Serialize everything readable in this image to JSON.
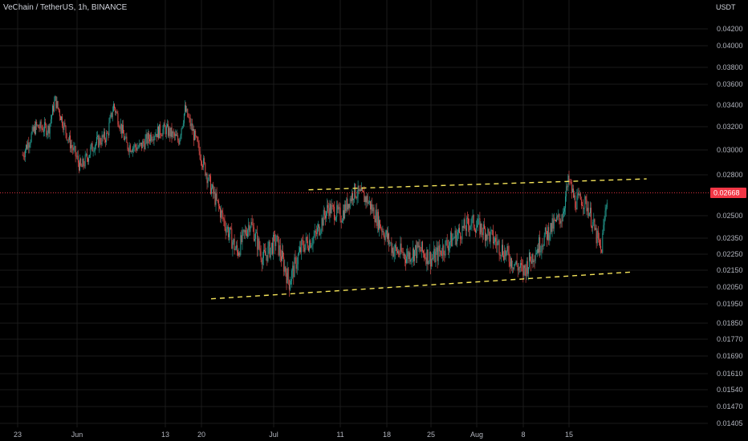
{
  "header": {
    "symbol_title": "VeChain / TetherUS, 1h, BINANCE"
  },
  "price_axis": {
    "unit": "USDT",
    "ticks": [
      "0.04200",
      "0.04000",
      "0.03800",
      "0.03600",
      "0.03400",
      "0.03200",
      "0.03000",
      "0.02800",
      "0.02500",
      "0.02350",
      "0.02250",
      "0.02150",
      "0.02050",
      "0.01950",
      "0.01850",
      "0.01770",
      "0.01690",
      "0.01610",
      "0.01540",
      "0.01470",
      "0.01405"
    ],
    "last_price": "0.02668",
    "last_price_color": "#f23645"
  },
  "time_axis": {
    "ticks": [
      "23",
      "Jun",
      "13",
      "20",
      "Jul",
      "11",
      "18",
      "25",
      "Aug",
      "8",
      "15"
    ]
  },
  "colors": {
    "up": "#26a69a",
    "down": "#ef5350",
    "background": "#000000",
    "grid": "#1a1a1a",
    "trendline": "#f5e45a"
  },
  "chart_data": {
    "type": "candlestick",
    "x_unit": "date",
    "y_unit": "USDT",
    "ylim": [
      0.01405,
      0.0432
    ],
    "xlim": [
      "2022-05-21",
      "2022-08-20"
    ],
    "grid": true,
    "approx_close_path": [
      [
        "2022-05-22",
        0.0296
      ],
      [
        "2022-05-24",
        0.032
      ],
      [
        "2022-05-26",
        0.0318
      ],
      [
        "2022-05-27",
        0.0345
      ],
      [
        "2022-05-29",
        0.031
      ],
      [
        "2022-05-31",
        0.0285
      ],
      [
        "2022-06-02",
        0.0305
      ],
      [
        "2022-06-04",
        0.0312
      ],
      [
        "2022-06-05",
        0.034
      ],
      [
        "2022-06-07",
        0.0304
      ],
      [
        "2022-06-09",
        0.0302
      ],
      [
        "2022-06-11",
        0.0314
      ],
      [
        "2022-06-13",
        0.0318
      ],
      [
        "2022-06-15",
        0.0308
      ],
      [
        "2022-06-16",
        0.0336
      ],
      [
        "2022-06-18",
        0.0302
      ],
      [
        "2022-06-20",
        0.027
      ],
      [
        "2022-06-22",
        0.0246
      ],
      [
        "2022-06-24",
        0.0226
      ],
      [
        "2022-06-26",
        0.0246
      ],
      [
        "2022-06-28",
        0.0222
      ],
      [
        "2022-06-30",
        0.0234
      ],
      [
        "2022-07-02",
        0.0208
      ],
      [
        "2022-07-04",
        0.023
      ],
      [
        "2022-07-06",
        0.0236
      ],
      [
        "2022-07-08",
        0.0256
      ],
      [
        "2022-07-10",
        0.025
      ],
      [
        "2022-07-12",
        0.0268
      ],
      [
        "2022-07-14",
        0.0262
      ],
      [
        "2022-07-16",
        0.0244
      ],
      [
        "2022-07-18",
        0.0228
      ],
      [
        "2022-07-20",
        0.0224
      ],
      [
        "2022-07-22",
        0.0228
      ],
      [
        "2022-07-24",
        0.0222
      ],
      [
        "2022-07-26",
        0.023
      ],
      [
        "2022-07-28",
        0.0238
      ],
      [
        "2022-07-30",
        0.0246
      ],
      [
        "2022-08-01",
        0.024
      ],
      [
        "2022-08-03",
        0.0232
      ],
      [
        "2022-08-05",
        0.0222
      ],
      [
        "2022-08-07",
        0.0214
      ],
      [
        "2022-08-09",
        0.0228
      ],
      [
        "2022-08-11",
        0.024
      ],
      [
        "2022-08-13",
        0.025
      ],
      [
        "2022-08-14",
        0.0276
      ],
      [
        "2022-08-15",
        0.026
      ],
      [
        "2022-08-16",
        0.0262
      ],
      [
        "2022-08-17",
        0.0256
      ],
      [
        "2022-08-18",
        0.024
      ],
      [
        "2022-08-19",
        0.0226
      ],
      [
        "2022-08-20",
        0.0268
      ]
    ],
    "trendlines": [
      {
        "style": "dashed",
        "from": [
          "2022-07-05",
          0.0269
        ],
        "to": [
          "2022-08-26",
          0.0277
        ]
      },
      {
        "style": "dashed",
        "from": [
          "2022-06-20",
          0.0198
        ],
        "to": [
          "2022-08-24",
          0.0214
        ]
      }
    ]
  }
}
